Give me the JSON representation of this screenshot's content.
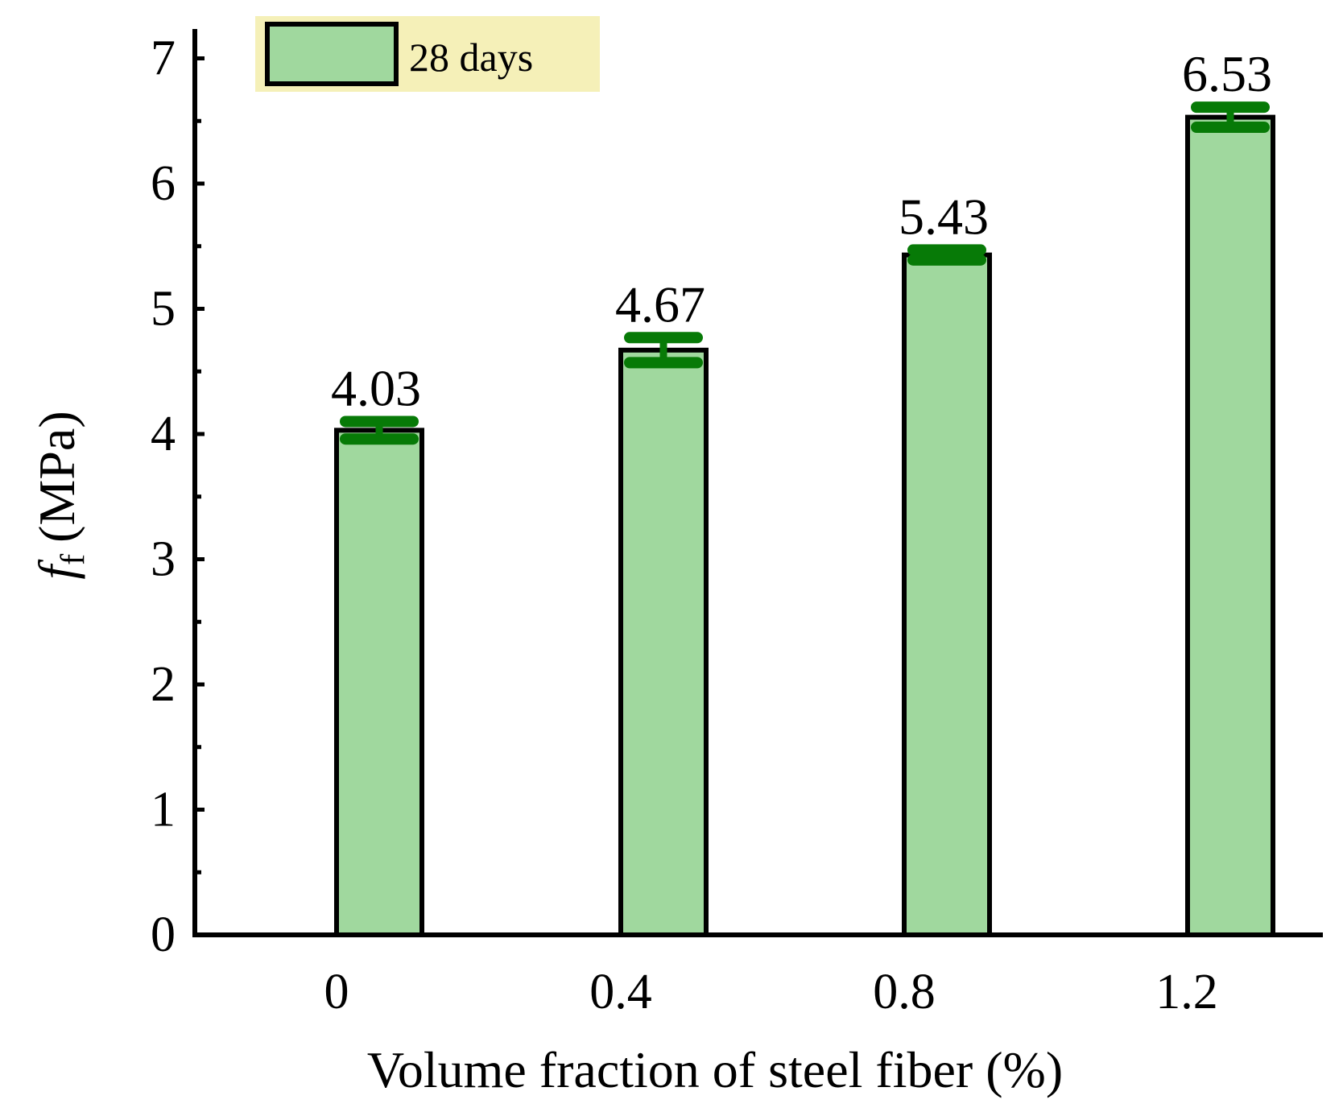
{
  "chart_data": {
    "type": "bar",
    "categories": [
      "0",
      "0.4",
      "0.8",
      "1.2"
    ],
    "series": [
      {
        "name": "28 days",
        "values": [
          4.03,
          4.67,
          5.43,
          6.53
        ],
        "errors": [
          0.07,
          0.1,
          0.04,
          0.08
        ],
        "labels": [
          "4.03",
          "4.67",
          "5.43",
          "6.53"
        ]
      }
    ],
    "title": "",
    "xlabel": "Volume fraction of steel fiber (%)",
    "ylabel": {
      "main": "f",
      "subscript": "f",
      "unit": "(MPa)"
    },
    "ylim": [
      0,
      7.2
    ],
    "yticks": [
      "0",
      "1",
      "2",
      "3",
      "4",
      "5",
      "6",
      "7"
    ],
    "minor_ticks": true,
    "grid": false,
    "legend_position": "top-left"
  },
  "colors": {
    "bar_fill": "#a0d89e",
    "bar_edge": "#000000",
    "error_bar": "#077a07",
    "legend_bg": "#f5f0b8"
  }
}
